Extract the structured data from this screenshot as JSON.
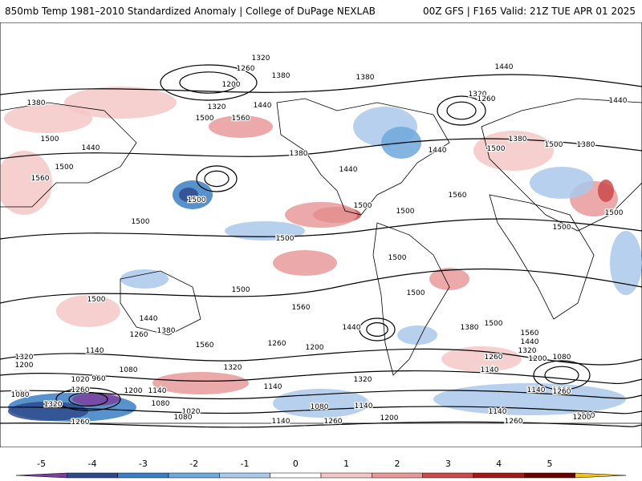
{
  "header": {
    "title_left": "850mb Temp 1981–2010 Standardized Anomaly | College of DuPage NEXLAB",
    "title_right": "00Z GFS | F165 Valid: 21Z TUE APR 01 2025"
  },
  "colorbar": {
    "ticks": [
      "-5",
      "-4",
      "-3",
      "-2",
      "-1",
      "0",
      "1",
      "2",
      "3",
      "4",
      "5"
    ],
    "colors": [
      "#7b3f9e",
      "#2e4a8c",
      "#3a7fc4",
      "#6fa8dc",
      "#a9c8ea",
      "#ffffff",
      "#f4c7c7",
      "#e89a9a",
      "#cc4a4a",
      "#a01a1a",
      "#6b0000",
      "#f2c21a"
    ]
  },
  "contour_labels": [
    "1320",
    "1260",
    "1200",
    "1380",
    "1380",
    "1440",
    "1320",
    "1260",
    "1380",
    "1320",
    "1440",
    "1500",
    "1560",
    "1500",
    "1440",
    "1560",
    "1500",
    "1380",
    "1440",
    "1500",
    "1380",
    "1440",
    "1500",
    "1380",
    "1440",
    "1500",
    "1500",
    "1560",
    "1500",
    "1500",
    "1500",
    "1500",
    "1500",
    "1500",
    "1500",
    "1500",
    "1560",
    "1500",
    "1440",
    "1380",
    "1260",
    "1560",
    "1440",
    "1380",
    "1500",
    "1560",
    "1440",
    "1320",
    "1320",
    "1200",
    "1140",
    "1260",
    "1200",
    "1320",
    "1260",
    "1200",
    "1140",
    "1080",
    "1260",
    "1080",
    "1020",
    "960",
    "1080",
    "1260",
    "1200",
    "1140",
    "1320",
    "1140",
    "1140",
    "1260",
    "1080",
    "1320",
    "1080",
    "1020",
    "1080",
    "1080",
    "1140",
    "1140",
    "1200",
    "1200",
    "1260",
    "1140",
    "1260",
    "1260",
    "1200"
  ]
}
